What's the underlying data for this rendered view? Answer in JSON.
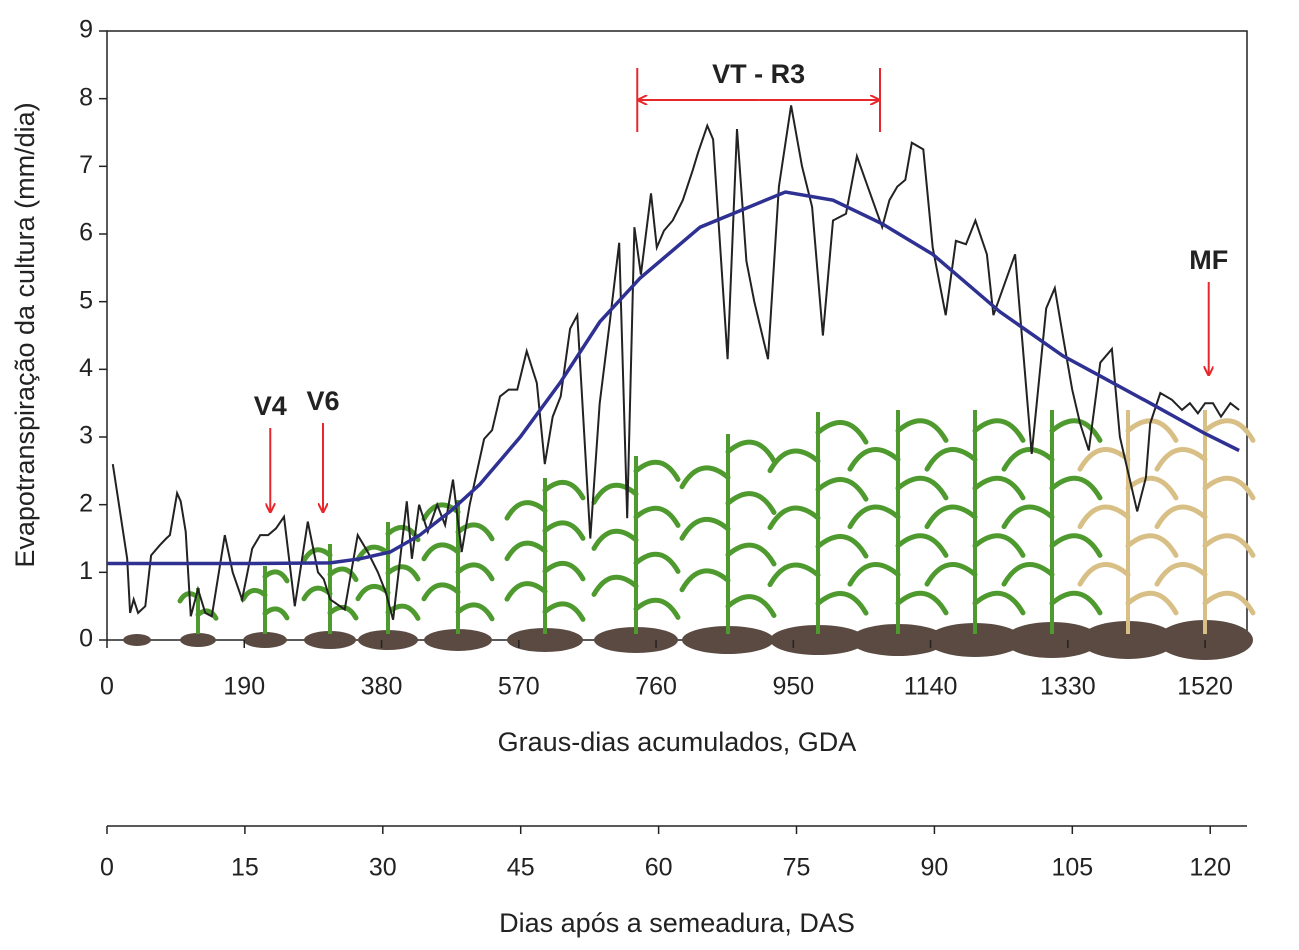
{
  "chart_data": {
    "type": "line",
    "ylabel": "Evapotranspiração da cultura (mm/dia)",
    "xlabel": "Graus-dias acumulados, GDA",
    "x2label": "Dias após a semeadura, DAS",
    "xlim": [
      0,
      1578
    ],
    "xticks": [
      0,
      190,
      380,
      570,
      760,
      950,
      1140,
      1330,
      1520
    ],
    "ylim": [
      0,
      9
    ],
    "yticks": [
      0,
      1,
      2,
      3,
      4,
      5,
      6,
      7,
      8,
      9
    ],
    "x2lim": [
      0,
      124
    ],
    "x2ticks": [
      0,
      15,
      30,
      45,
      60,
      75,
      90,
      105,
      120
    ],
    "series": [
      {
        "color": "#222222",
        "x": [
          8,
          28,
          32,
          37,
          43,
          53,
          61,
          73,
          82,
          87,
          97,
          102,
          109,
          116,
          126,
          136,
          145,
          163,
          174,
          187,
          201,
          212,
          223,
          234,
          245,
          260,
          278,
          292,
          300,
          309,
          329,
          347,
          361,
          375,
          386,
          396,
          415,
          422,
          432,
          444,
          457,
          468,
          479,
          491,
          502,
          522,
          533,
          544,
          556,
          568,
          581,
          595,
          606,
          617,
          628,
          641,
          651,
          669,
          682,
          696,
          709,
          720,
          730,
          739,
          753,
          761,
          771,
          783,
          797,
          811,
          818,
          831,
          839,
          859,
          872,
          885,
          896,
          915,
          930,
          947,
          962,
          976,
          991,
          1005,
          1023,
          1038,
          1053,
          1073,
          1083,
          1094,
          1105,
          1114,
          1130,
          1143,
          1161,
          1175,
          1189,
          1202,
          1218,
          1227,
          1257,
          1280,
          1300,
          1312,
          1323,
          1336,
          1347,
          1359,
          1375,
          1391,
          1402,
          1426,
          1438,
          1444,
          1458,
          1474,
          1488,
          1499,
          1510,
          1520,
          1531,
          1542,
          1555,
          1567
        ],
        "values": [
          2.6,
          1.2,
          0.4,
          0.6,
          0.4,
          0.5,
          1.25,
          1.4,
          1.5,
          1.55,
          2.17,
          2.05,
          1.6,
          0.35,
          0.75,
          0.4,
          0.35,
          1.55,
          1.0,
          0.6,
          1.35,
          1.55,
          1.55,
          1.65,
          1.82,
          0.5,
          1.75,
          1.0,
          0.9,
          0.6,
          0.45,
          1.55,
          1.3,
          1.0,
          0.7,
          0.3,
          2.05,
          1.2,
          2.0,
          1.6,
          2.0,
          1.7,
          2.37,
          1.3,
          2.0,
          2.97,
          3.1,
          3.6,
          3.7,
          3.7,
          4.27,
          3.8,
          2.6,
          3.3,
          3.6,
          4.6,
          4.8,
          1.5,
          3.5,
          4.7,
          5.87,
          1.8,
          6.1,
          5.4,
          6.6,
          5.8,
          6.05,
          6.2,
          6.5,
          6.95,
          7.2,
          7.6,
          7.4,
          4.15,
          7.55,
          5.6,
          5.0,
          4.15,
          6.7,
          7.9,
          7.0,
          6.4,
          4.5,
          6.2,
          6.3,
          7.15,
          6.7,
          6.1,
          6.5,
          6.7,
          6.8,
          7.35,
          7.25,
          5.8,
          4.8,
          5.9,
          5.85,
          6.2,
          5.7,
          4.8,
          5.7,
          2.75,
          4.9,
          5.2,
          4.5,
          3.7,
          3.2,
          2.8,
          4.1,
          4.3,
          3.0,
          1.9,
          2.4,
          3.2,
          3.65,
          3.55,
          3.4,
          3.5,
          3.35,
          3.5,
          3.5,
          3.3,
          3.5,
          3.4
        ]
      },
      {
        "color": "#2e3192",
        "x": [
          0,
          100,
          200,
          309,
          350,
          392,
          433,
          475,
          516,
          572,
          627,
          682,
          738,
          821,
          939,
          1005,
          1073,
          1143,
          1236,
          1323,
          1375,
          1444,
          1520,
          1567
        ],
        "values": [
          1.13,
          1.13,
          1.13,
          1.14,
          1.2,
          1.3,
          1.55,
          1.9,
          2.3,
          3.0,
          3.8,
          4.7,
          5.35,
          6.1,
          6.62,
          6.5,
          6.15,
          5.7,
          4.85,
          4.2,
          3.9,
          3.5,
          3.05,
          2.8
        ]
      }
    ],
    "annotations": [
      {
        "text": "V4",
        "x": 226
      },
      {
        "text": "V6",
        "x": 299
      },
      {
        "text": "MF",
        "x": 1525
      }
    ],
    "range_annotation": {
      "text": "VT - R3",
      "x": [
        734,
        1070
      ]
    },
    "arrow_color": "#e8262b"
  }
}
